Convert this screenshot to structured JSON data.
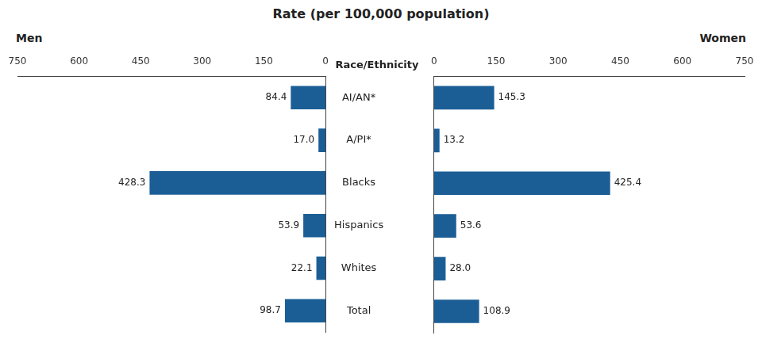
{
  "chart_data": {
    "type": "bar",
    "orientation": "horizontal",
    "title": "Rate (per 100,000 population)",
    "ylabel": "Race/Ethnicity",
    "categories": [
      "Total",
      "Whites",
      "Hispanics",
      "Blacks",
      "A/PI*",
      "AI/AN*"
    ],
    "series": [
      {
        "name": "Men",
        "color": "#1B5E96",
        "values": [
          98.7,
          22.1,
          53.9,
          428.3,
          17.0,
          84.4
        ],
        "value_labels": [
          "98.7",
          "22.1",
          "53.9",
          "428.3",
          "17.0",
          "84.4"
        ]
      },
      {
        "name": "Women",
        "color": "#1B5E96",
        "values": [
          108.9,
          28.0,
          53.6,
          425.4,
          13.2,
          145.3
        ],
        "value_labels": [
          "108.9",
          "28.0",
          "53.6",
          "425.4",
          "13.2",
          "145.3"
        ]
      }
    ],
    "xlim": [
      0,
      750
    ],
    "xticks": [
      0,
      150,
      300,
      450,
      600,
      750
    ],
    "grid": false,
    "data_labels": true
  }
}
